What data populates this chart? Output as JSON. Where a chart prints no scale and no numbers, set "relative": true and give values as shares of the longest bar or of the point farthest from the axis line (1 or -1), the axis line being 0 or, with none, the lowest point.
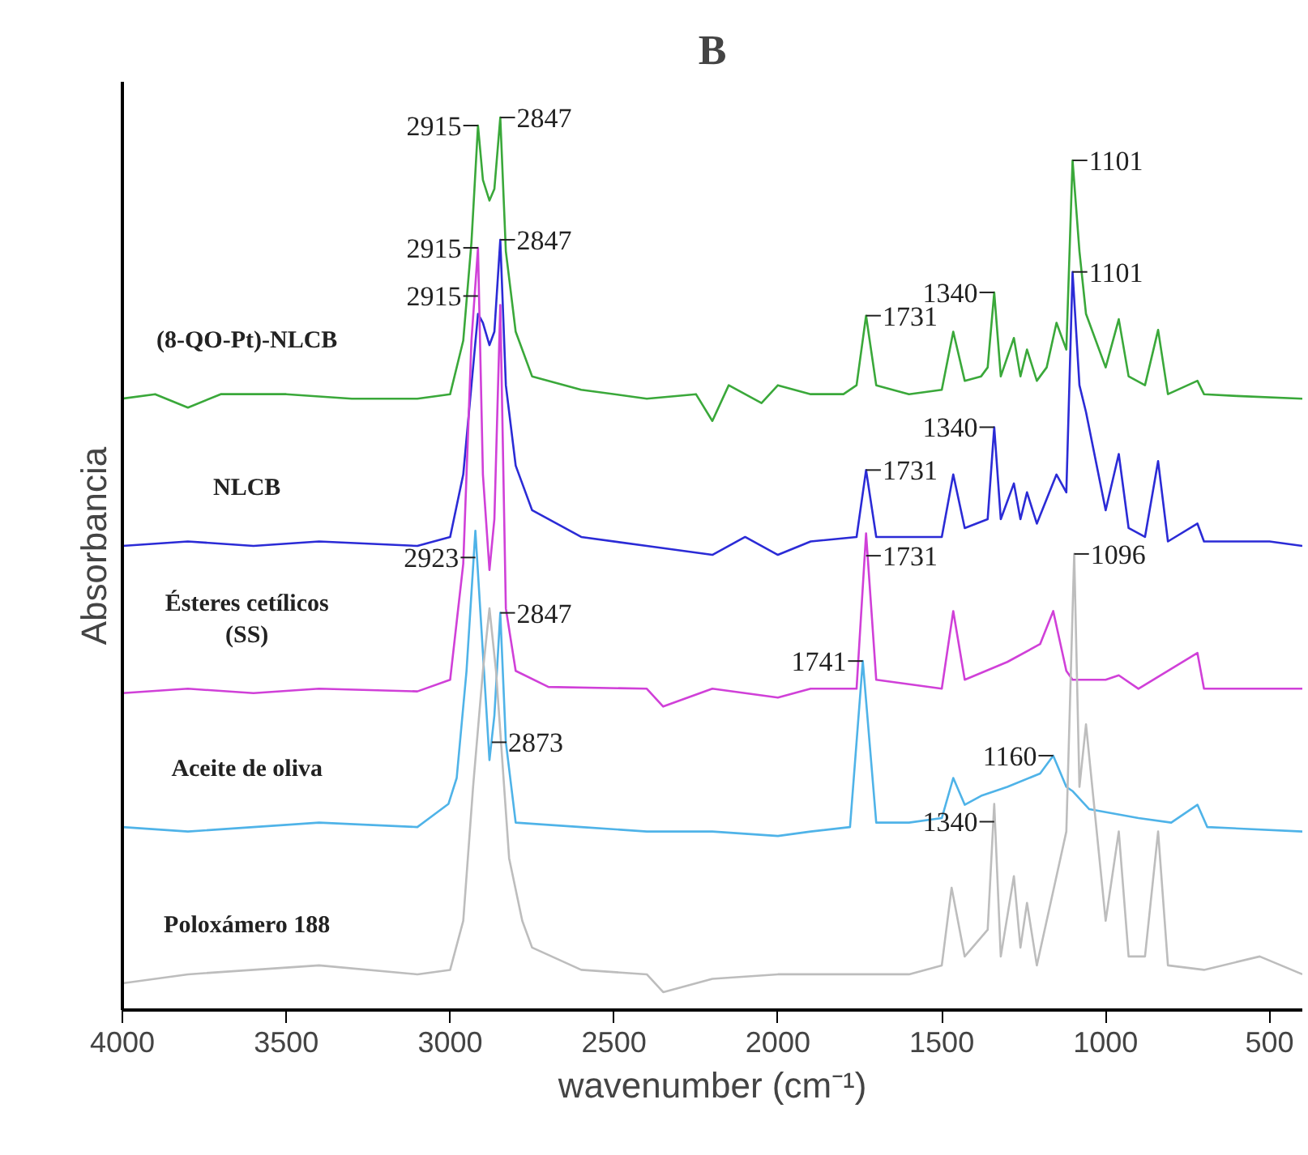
{
  "chart_data": {
    "type": "line",
    "title": "B",
    "xlabel": "wavenumber (cm⁻¹)",
    "ylabel": "Absorbancia",
    "relative": true,
    "xlim": [
      4000,
      400
    ],
    "xticks": [
      4000,
      3500,
      3000,
      2500,
      2000,
      1500,
      1000,
      500
    ],
    "grid": false,
    "series": [
      {
        "name": "(8-QO-Pt)-NLCB",
        "color": "#3aa83a",
        "x": [
          4000,
          3900,
          3800,
          3700,
          3500,
          3300,
          3100,
          3000,
          2960,
          2935,
          2915,
          2900,
          2880,
          2865,
          2847,
          2830,
          2800,
          2750,
          2600,
          2400,
          2250,
          2200,
          2150,
          2050,
          2000,
          1900,
          1800,
          1760,
          1731,
          1700,
          1600,
          1500,
          1465,
          1430,
          1380,
          1360,
          1340,
          1320,
          1280,
          1260,
          1240,
          1210,
          1180,
          1150,
          1120,
          1101,
          1080,
          1060,
          1000,
          960,
          930,
          880,
          840,
          810,
          720,
          700,
          600,
          400
        ],
        "values": [
          0.685,
          0.69,
          0.675,
          0.69,
          0.69,
          0.685,
          0.685,
          0.69,
          0.75,
          0.86,
          0.991,
          0.93,
          0.907,
          0.92,
          1.0,
          0.85,
          0.76,
          0.71,
          0.695,
          0.685,
          0.69,
          0.66,
          0.7,
          0.68,
          0.7,
          0.69,
          0.69,
          0.7,
          0.778,
          0.7,
          0.69,
          0.695,
          0.76,
          0.705,
          0.71,
          0.72,
          0.804,
          0.71,
          0.753,
          0.71,
          0.74,
          0.705,
          0.72,
          0.77,
          0.74,
          0.952,
          0.85,
          0.78,
          0.72,
          0.774,
          0.71,
          0.7,
          0.762,
          0.69,
          0.705,
          0.69,
          0.688,
          0.685
        ]
      },
      {
        "name": "NLCB",
        "color": "#2b2bd6",
        "x": [
          4000,
          3800,
          3600,
          3400,
          3100,
          3000,
          2960,
          2935,
          2915,
          2900,
          2880,
          2865,
          2847,
          2830,
          2800,
          2750,
          2600,
          2400,
          2200,
          2100,
          2000,
          1900,
          1760,
          1731,
          1700,
          1500,
          1465,
          1430,
          1360,
          1340,
          1320,
          1280,
          1260,
          1240,
          1210,
          1150,
          1120,
          1101,
          1080,
          1060,
          1000,
          960,
          930,
          880,
          840,
          810,
          720,
          700,
          500,
          400
        ],
        "values": [
          0.52,
          0.525,
          0.52,
          0.525,
          0.52,
          0.53,
          0.6,
          0.7,
          0.78,
          0.77,
          0.745,
          0.76,
          0.863,
          0.7,
          0.61,
          0.56,
          0.53,
          0.52,
          0.51,
          0.53,
          0.51,
          0.525,
          0.53,
          0.605,
          0.53,
          0.53,
          0.6,
          0.54,
          0.55,
          0.653,
          0.55,
          0.59,
          0.55,
          0.58,
          0.545,
          0.6,
          0.58,
          0.827,
          0.7,
          0.67,
          0.56,
          0.623,
          0.54,
          0.53,
          0.615,
          0.525,
          0.545,
          0.525,
          0.525,
          0.52
        ]
      },
      {
        "name": "Ésteres cetílicos (SS)",
        "color": "#d040d8",
        "x": [
          4000,
          3800,
          3600,
          3400,
          3100,
          3000,
          2960,
          2935,
          2915,
          2900,
          2880,
          2865,
          2847,
          2830,
          2800,
          2700,
          2400,
          2350,
          2200,
          2000,
          1900,
          1760,
          1731,
          1700,
          1500,
          1465,
          1430,
          1300,
          1200,
          1160,
          1120,
          1101,
          1000,
          960,
          900,
          720,
          700,
          400
        ],
        "values": [
          0.355,
          0.36,
          0.355,
          0.36,
          0.357,
          0.37,
          0.5,
          0.75,
          0.854,
          0.6,
          0.493,
          0.55,
          0.79,
          0.45,
          0.38,
          0.362,
          0.36,
          0.34,
          0.36,
          0.35,
          0.36,
          0.36,
          0.534,
          0.37,
          0.36,
          0.447,
          0.37,
          0.39,
          0.41,
          0.447,
          0.38,
          0.37,
          0.37,
          0.375,
          0.36,
          0.4,
          0.36,
          0.36
        ]
      },
      {
        "name": "Aceite de oliva",
        "color": "#4fb3e8",
        "x": [
          4000,
          3800,
          3600,
          3400,
          3100,
          3005,
          2980,
          2950,
          2923,
          2900,
          2880,
          2865,
          2847,
          2830,
          2800,
          2600,
          2400,
          2200,
          2000,
          1900,
          1780,
          1741,
          1700,
          1600,
          1500,
          1465,
          1430,
          1380,
          1300,
          1200,
          1160,
          1120,
          1100,
          1050,
          900,
          800,
          720,
          690,
          400
        ],
        "values": [
          0.205,
          0.2,
          0.205,
          0.21,
          0.205,
          0.231,
          0.26,
          0.38,
          0.537,
          0.4,
          0.28,
          0.33,
          0.445,
          0.3,
          0.21,
          0.205,
          0.2,
          0.2,
          0.195,
          0.2,
          0.205,
          0.391,
          0.21,
          0.21,
          0.215,
          0.26,
          0.23,
          0.24,
          0.25,
          0.265,
          0.285,
          0.25,
          0.245,
          0.225,
          0.215,
          0.21,
          0.23,
          0.205,
          0.2
        ]
      },
      {
        "name": "Poloxámero 188",
        "color": "#bdbdbd",
        "x": [
          4000,
          3800,
          3600,
          3400,
          3100,
          3000,
          2960,
          2930,
          2900,
          2880,
          2860,
          2820,
          2780,
          2750,
          2600,
          2400,
          2350,
          2200,
          2000,
          1800,
          1600,
          1500,
          1470,
          1430,
          1360,
          1340,
          1320,
          1280,
          1260,
          1240,
          1210,
          1150,
          1120,
          1096,
          1080,
          1060,
          1000,
          960,
          930,
          880,
          840,
          810,
          700,
          530,
          400
        ],
        "values": [
          0.03,
          0.04,
          0.045,
          0.05,
          0.04,
          0.045,
          0.1,
          0.25,
          0.38,
          0.45,
          0.38,
          0.17,
          0.1,
          0.07,
          0.045,
          0.04,
          0.02,
          0.035,
          0.04,
          0.04,
          0.04,
          0.05,
          0.137,
          0.06,
          0.09,
          0.231,
          0.06,
          0.15,
          0.07,
          0.12,
          0.05,
          0.15,
          0.2,
          0.511,
          0.25,
          0.32,
          0.1,
          0.2,
          0.06,
          0.06,
          0.2,
          0.05,
          0.045,
          0.06,
          0.04
        ]
      }
    ],
    "annotations": [
      {
        "text": "2915",
        "x": 2915,
        "y": 0.991
      },
      {
        "text": "2847",
        "x": 2847,
        "y": 1.0
      },
      {
        "text": "1731",
        "x": 1731,
        "y": 0.778
      },
      {
        "text": "1340",
        "x": 1340,
        "y": 0.804
      },
      {
        "text": "1101",
        "x": 1101,
        "y": 0.952
      },
      {
        "text": "2915",
        "x": 2915,
        "y": 0.78
      },
      {
        "text": "2847",
        "x": 2847,
        "y": 0.863
      },
      {
        "text": "1731",
        "x": 1731,
        "y": 0.605
      },
      {
        "text": "1340",
        "x": 1340,
        "y": 0.653
      },
      {
        "text": "1101",
        "x": 1101,
        "y": 0.827
      },
      {
        "text": "2915",
        "x": 2915,
        "y": 0.854
      },
      {
        "text": "1731",
        "x": 1731,
        "y": 0.534
      },
      {
        "text": "2923",
        "x": 2923,
        "y": 0.537
      },
      {
        "text": "2847",
        "x": 2847,
        "y": 0.445
      },
      {
        "text": "2873",
        "x": 2873,
        "y": 0.33
      },
      {
        "text": "1741",
        "x": 1741,
        "y": 0.391
      },
      {
        "text": "1160",
        "x": 1160,
        "y": 0.285
      },
      {
        "text": "1096",
        "x": 1096,
        "y": 0.511
      },
      {
        "text": "1340",
        "x": 1340,
        "y": 0.231
      }
    ]
  }
}
